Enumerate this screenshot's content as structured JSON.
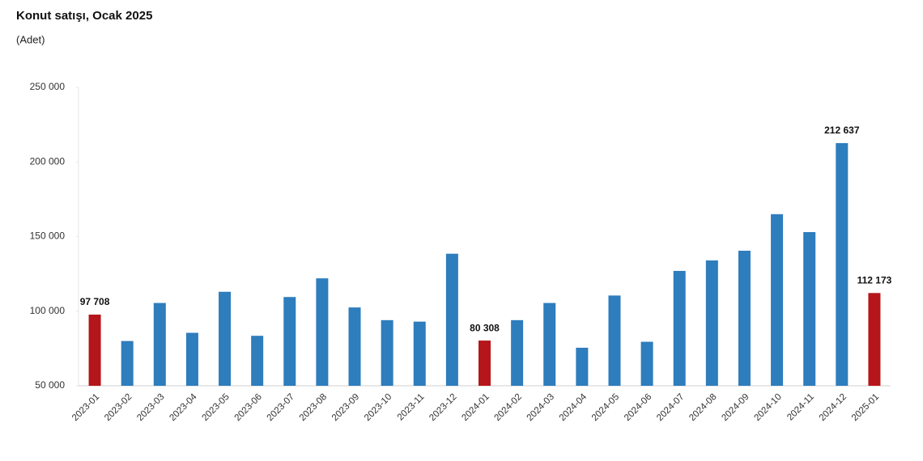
{
  "chart_data": {
    "type": "bar",
    "title": "Konut satışı, Ocak 2025",
    "subtitle": "(Adet)",
    "categories": [
      "2023-01",
      "2023-02",
      "2023-03",
      "2023-04",
      "2023-05",
      "2023-06",
      "2023-07",
      "2023-08",
      "2023-09",
      "2023-10",
      "2023-11",
      "2023-12",
      "2024-01",
      "2024-02",
      "2024-03",
      "2024-04",
      "2024-05",
      "2024-06",
      "2024-07",
      "2024-08",
      "2024-09",
      "2024-10",
      "2024-11",
      "2024-12",
      "2025-01"
    ],
    "values": [
      97708,
      80000,
      105500,
      85500,
      113000,
      83500,
      109500,
      122000,
      102500,
      94000,
      93000,
      138500,
      80308,
      94000,
      105500,
      75500,
      110500,
      79500,
      127000,
      134000,
      140500,
      165000,
      153000,
      212637,
      112173
    ],
    "value_labels": [
      "97 708",
      null,
      null,
      null,
      null,
      null,
      null,
      null,
      null,
      null,
      null,
      null,
      "80 308",
      null,
      null,
      null,
      null,
      null,
      null,
      null,
      null,
      null,
      null,
      "212 637",
      "112 173"
    ],
    "colors": [
      "#b5161b",
      "#2e7dbd",
      "#2e7dbd",
      "#2e7dbd",
      "#2e7dbd",
      "#2e7dbd",
      "#2e7dbd",
      "#2e7dbd",
      "#2e7dbd",
      "#2e7dbd",
      "#2e7dbd",
      "#2e7dbd",
      "#b5161b",
      "#2e7dbd",
      "#2e7dbd",
      "#2e7dbd",
      "#2e7dbd",
      "#2e7dbd",
      "#2e7dbd",
      "#2e7dbd",
      "#2e7dbd",
      "#2e7dbd",
      "#2e7dbd",
      "#2e7dbd",
      "#b5161b"
    ],
    "ylim": [
      50000,
      250000
    ],
    "yticks": [
      {
        "value": 50000,
        "label": "50 000"
      },
      {
        "value": 100000,
        "label": "100 000"
      },
      {
        "value": 150000,
        "label": "150 000"
      },
      {
        "value": 200000,
        "label": "200 000"
      },
      {
        "value": 250000,
        "label": "250 000"
      }
    ],
    "grid": false
  }
}
